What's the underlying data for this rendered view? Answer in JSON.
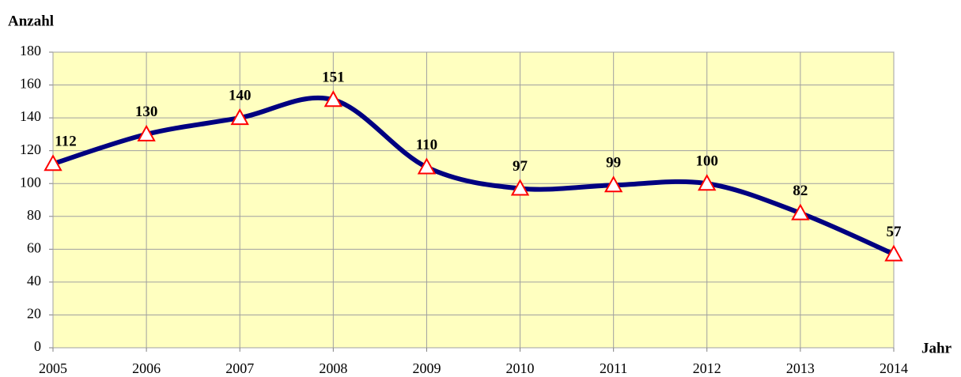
{
  "chart_data": {
    "type": "line",
    "y_label": "Anzahl",
    "x_label": "Jahr",
    "x": [
      2005,
      2006,
      2007,
      2008,
      2009,
      2010,
      2011,
      2012,
      2013,
      2014
    ],
    "series": [
      {
        "name": "Anzahl",
        "color": "#000080",
        "marker_color": "#ff0000",
        "values": [
          112,
          130,
          140,
          151,
          110,
          97,
          99,
          100,
          82,
          57
        ]
      }
    ],
    "xlim": [
      2005,
      2014
    ],
    "xticks": [
      2005,
      2006,
      2007,
      2008,
      2009,
      2010,
      2011,
      2012,
      2013,
      2014
    ],
    "ylim": [
      0,
      180
    ],
    "yticks": [
      0,
      20,
      40,
      60,
      80,
      100,
      120,
      140,
      160,
      180
    ],
    "grid": true,
    "background": "#ffffc0",
    "smooth": true
  }
}
